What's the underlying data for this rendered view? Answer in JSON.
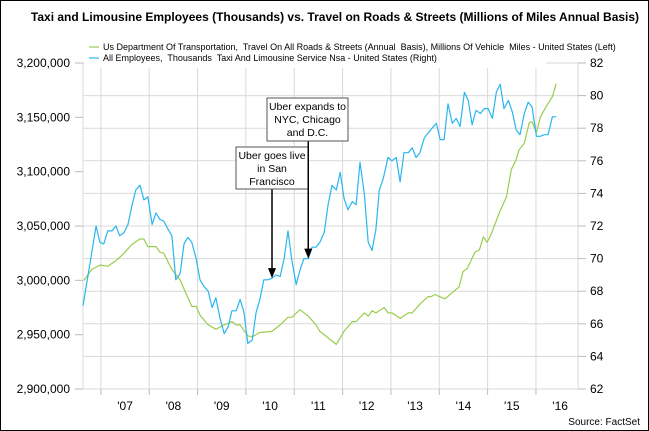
{
  "chart_data": {
    "type": "line",
    "title": "Taxi and Limousine Employees (Thousands) vs. Travel on Roads & Streets (Millions of Miles Annual Basis)",
    "source": "Source: FactSet",
    "xlim": [
      2006.63,
      2016.87
    ],
    "x_ticks": [
      {
        "x": 2007.5,
        "label": "'07"
      },
      {
        "x": 2008.5,
        "label": "'08"
      },
      {
        "x": 2009.5,
        "label": "'09"
      },
      {
        "x": 2010.5,
        "label": "'10"
      },
      {
        "x": 2011.5,
        "label": "'11"
      },
      {
        "x": 2012.5,
        "label": "'12"
      },
      {
        "x": 2013.5,
        "label": "'13"
      },
      {
        "x": 2014.5,
        "label": "'14"
      },
      {
        "x": 2015.5,
        "label": "'15"
      },
      {
        "x": 2016.5,
        "label": "'16"
      }
    ],
    "x_gridlines": [
      2007,
      2008,
      2009,
      2010,
      2011,
      2012,
      2013,
      2014,
      2015,
      2016
    ],
    "y_left": {
      "ylim": [
        2900000,
        3200000
      ],
      "ticks": [
        2900000,
        2950000,
        3000000,
        3050000,
        3100000,
        3150000,
        3200000
      ],
      "tick_labels": [
        "2,900,000",
        "2,950,000",
        "3,000,000",
        "3,050,000",
        "3,100,000",
        "3,150,000",
        "3,200,000"
      ]
    },
    "y_right": {
      "ylim": [
        62,
        82
      ],
      "ticks": [
        62,
        64,
        66,
        68,
        70,
        72,
        74,
        76,
        78,
        80,
        82
      ],
      "tick_labels": [
        "62",
        "64",
        "66",
        "68",
        "70",
        "72",
        "74",
        "76",
        "78",
        "80",
        "82"
      ]
    },
    "grid": true,
    "legend_position": "top-left",
    "series": [
      {
        "name": "Us Department Of Transportation,  Travel On All Roads & Streets (Annual  Basis), Millions Of Vehicle  Miles - United States (Left)",
        "axis": "left",
        "color": "#9ACD4C",
        "x": [
          2006.65,
          2006.81,
          2006.98,
          2007.14,
          2007.31,
          2007.48,
          2007.64,
          2007.81,
          2007.89,
          2007.97,
          2008.14,
          2008.22,
          2008.3,
          2008.47,
          2008.64,
          2008.8,
          2008.88,
          2008.97,
          2009.05,
          2009.22,
          2009.38,
          2009.55,
          2009.71,
          2009.8,
          2009.88,
          2010.04,
          2010.13,
          2010.29,
          2010.54,
          2010.71,
          2010.87,
          2010.95,
          2011.12,
          2011.29,
          2011.45,
          2011.53,
          2011.7,
          2011.87,
          2012.03,
          2012.2,
          2012.28,
          2012.45,
          2012.53,
          2012.61,
          2012.69,
          2012.86,
          2012.94,
          2013.02,
          2013.19,
          2013.36,
          2013.44,
          2013.6,
          2013.77,
          2013.83,
          2013.92,
          2014.0,
          2014.12,
          2014.25,
          2014.41,
          2014.49,
          2014.58,
          2014.74,
          2014.83,
          2014.91,
          2014.99,
          2015.07,
          2015.24,
          2015.39,
          2015.49,
          2015.59,
          2015.65,
          2015.76,
          2015.86,
          2015.92,
          2016.01,
          2016.09,
          2016.21,
          2016.34,
          2016.42
        ],
        "values": [
          3000000,
          3010000,
          3014000,
          3013000,
          3018000,
          3025000,
          3033000,
          3038000,
          3038000,
          3031000,
          3031000,
          3026000,
          3025000,
          3010000,
          3000000,
          2984000,
          2976000,
          2976000,
          2968000,
          2959000,
          2955000,
          2959000,
          2962000,
          2959000,
          2959000,
          2949000,
          2948000,
          2952000,
          2953000,
          2959000,
          2966000,
          2966000,
          2973000,
          2967000,
          2959000,
          2953000,
          2947000,
          2941000,
          2953000,
          2962000,
          2962000,
          2970000,
          2967000,
          2972000,
          2970000,
          2975000,
          2970000,
          2970000,
          2965000,
          2970000,
          2970000,
          2978000,
          2985000,
          2985000,
          2987000,
          2985000,
          2983000,
          2988000,
          2994000,
          3008000,
          3011000,
          3026000,
          3028000,
          3040000,
          3035000,
          3042000,
          3062000,
          3077000,
          3102000,
          3111000,
          3120000,
          3126000,
          3145000,
          3146000,
          3136000,
          3150000,
          3160000,
          3169000,
          3181000
        ]
      },
      {
        "name": "All Employees,  Thousands  Taxi And Limousine Service Nsa - United States (Right)",
        "axis": "right",
        "color": "#29B6F0",
        "x": [
          2006.63,
          2006.9,
          2006.98,
          2007.06,
          2007.14,
          2007.23,
          2007.31,
          2007.39,
          2007.48,
          2007.56,
          2007.64,
          2007.72,
          2007.81,
          2007.89,
          2007.97,
          2008.06,
          2008.14,
          2008.22,
          2008.3,
          2008.39,
          2008.47,
          2008.55,
          2008.64,
          2008.72,
          2008.8,
          2008.88,
          2008.97,
          2009.05,
          2009.13,
          2009.22,
          2009.3,
          2009.38,
          2009.46,
          2009.55,
          2009.63,
          2009.71,
          2009.8,
          2009.88,
          2009.96,
          2010.04,
          2010.13,
          2010.21,
          2010.29,
          2010.37,
          2010.46,
          2010.54,
          2010.62,
          2010.71,
          2010.79,
          2010.87,
          2010.95,
          2011.04,
          2011.12,
          2011.2,
          2011.29,
          2011.37,
          2011.45,
          2011.53,
          2011.62,
          2011.7,
          2011.78,
          2011.87,
          2011.95,
          2012.03,
          2012.11,
          2012.2,
          2012.28,
          2012.36,
          2012.45,
          2012.53,
          2012.61,
          2012.69,
          2012.76,
          2012.84,
          2012.94,
          2013.02,
          2013.11,
          2013.19,
          2013.27,
          2013.36,
          2013.44,
          2013.52,
          2013.6,
          2013.69,
          2013.77,
          2013.85,
          2013.94,
          2014.02,
          2014.1,
          2014.18,
          2014.27,
          2014.35,
          2014.43,
          2014.52,
          2014.6,
          2014.68,
          2014.76,
          2014.85,
          2014.93,
          2015.01,
          2015.1,
          2015.18,
          2015.26,
          2015.34,
          2015.43,
          2015.51,
          2015.59,
          2015.67,
          2015.76,
          2015.84,
          2015.92,
          2016.01,
          2016.09,
          2016.17,
          2016.25,
          2016.34,
          2016.42
        ],
        "values": [
          67.1,
          72.0,
          71.0,
          70.9,
          71.7,
          71.7,
          72.0,
          71.4,
          71.6,
          72.1,
          73.2,
          74.2,
          74.5,
          73.6,
          73.8,
          72.1,
          72.8,
          72.4,
          72.3,
          71.8,
          71.4,
          68.7,
          69.1,
          70.9,
          71.3,
          71.0,
          70.0,
          68.7,
          68.3,
          68.0,
          67.0,
          67.6,
          66.4,
          65.4,
          65.8,
          66.8,
          66.8,
          67.5,
          66.7,
          64.8,
          65.0,
          66.7,
          67.5,
          68.7,
          68.7,
          68.8,
          69.0,
          68.9,
          70.0,
          71.7,
          69.9,
          68.4,
          69.3,
          70.0,
          70.0,
          70.7,
          70.7,
          71.0,
          71.6,
          73.3,
          74.5,
          74.2,
          75.3,
          73.7,
          73.0,
          73.5,
          73.3,
          75.9,
          74.0,
          71.0,
          70.5,
          71.8,
          74.2,
          74.9,
          76.2,
          76.0,
          76.2,
          74.7,
          76.5,
          76.5,
          76.8,
          76.2,
          76.5,
          77.4,
          77.7,
          78.0,
          78.3,
          77.3,
          77.3,
          79.5,
          78.3,
          78.6,
          78.1,
          80.2,
          79.7,
          78.2,
          79.1,
          78.9,
          79.2,
          79.2,
          78.6,
          80.2,
          80.7,
          79.2,
          79.7,
          79.0,
          77.9,
          77.6,
          78.9,
          79.6,
          79.3,
          77.5,
          77.5,
          77.6,
          77.6,
          78.7,
          78.7
        ]
      }
    ],
    "annotations": [
      {
        "lines": [
          "Uber goes live",
          "in San",
          "Francisco"
        ],
        "x": 2010.54,
        "y_right": 68.8
      },
      {
        "lines": [
          "Uber expands to",
          "NYC, Chicago",
          "and D.C."
        ],
        "x": 2011.29,
        "y_right": 70.0
      }
    ]
  }
}
